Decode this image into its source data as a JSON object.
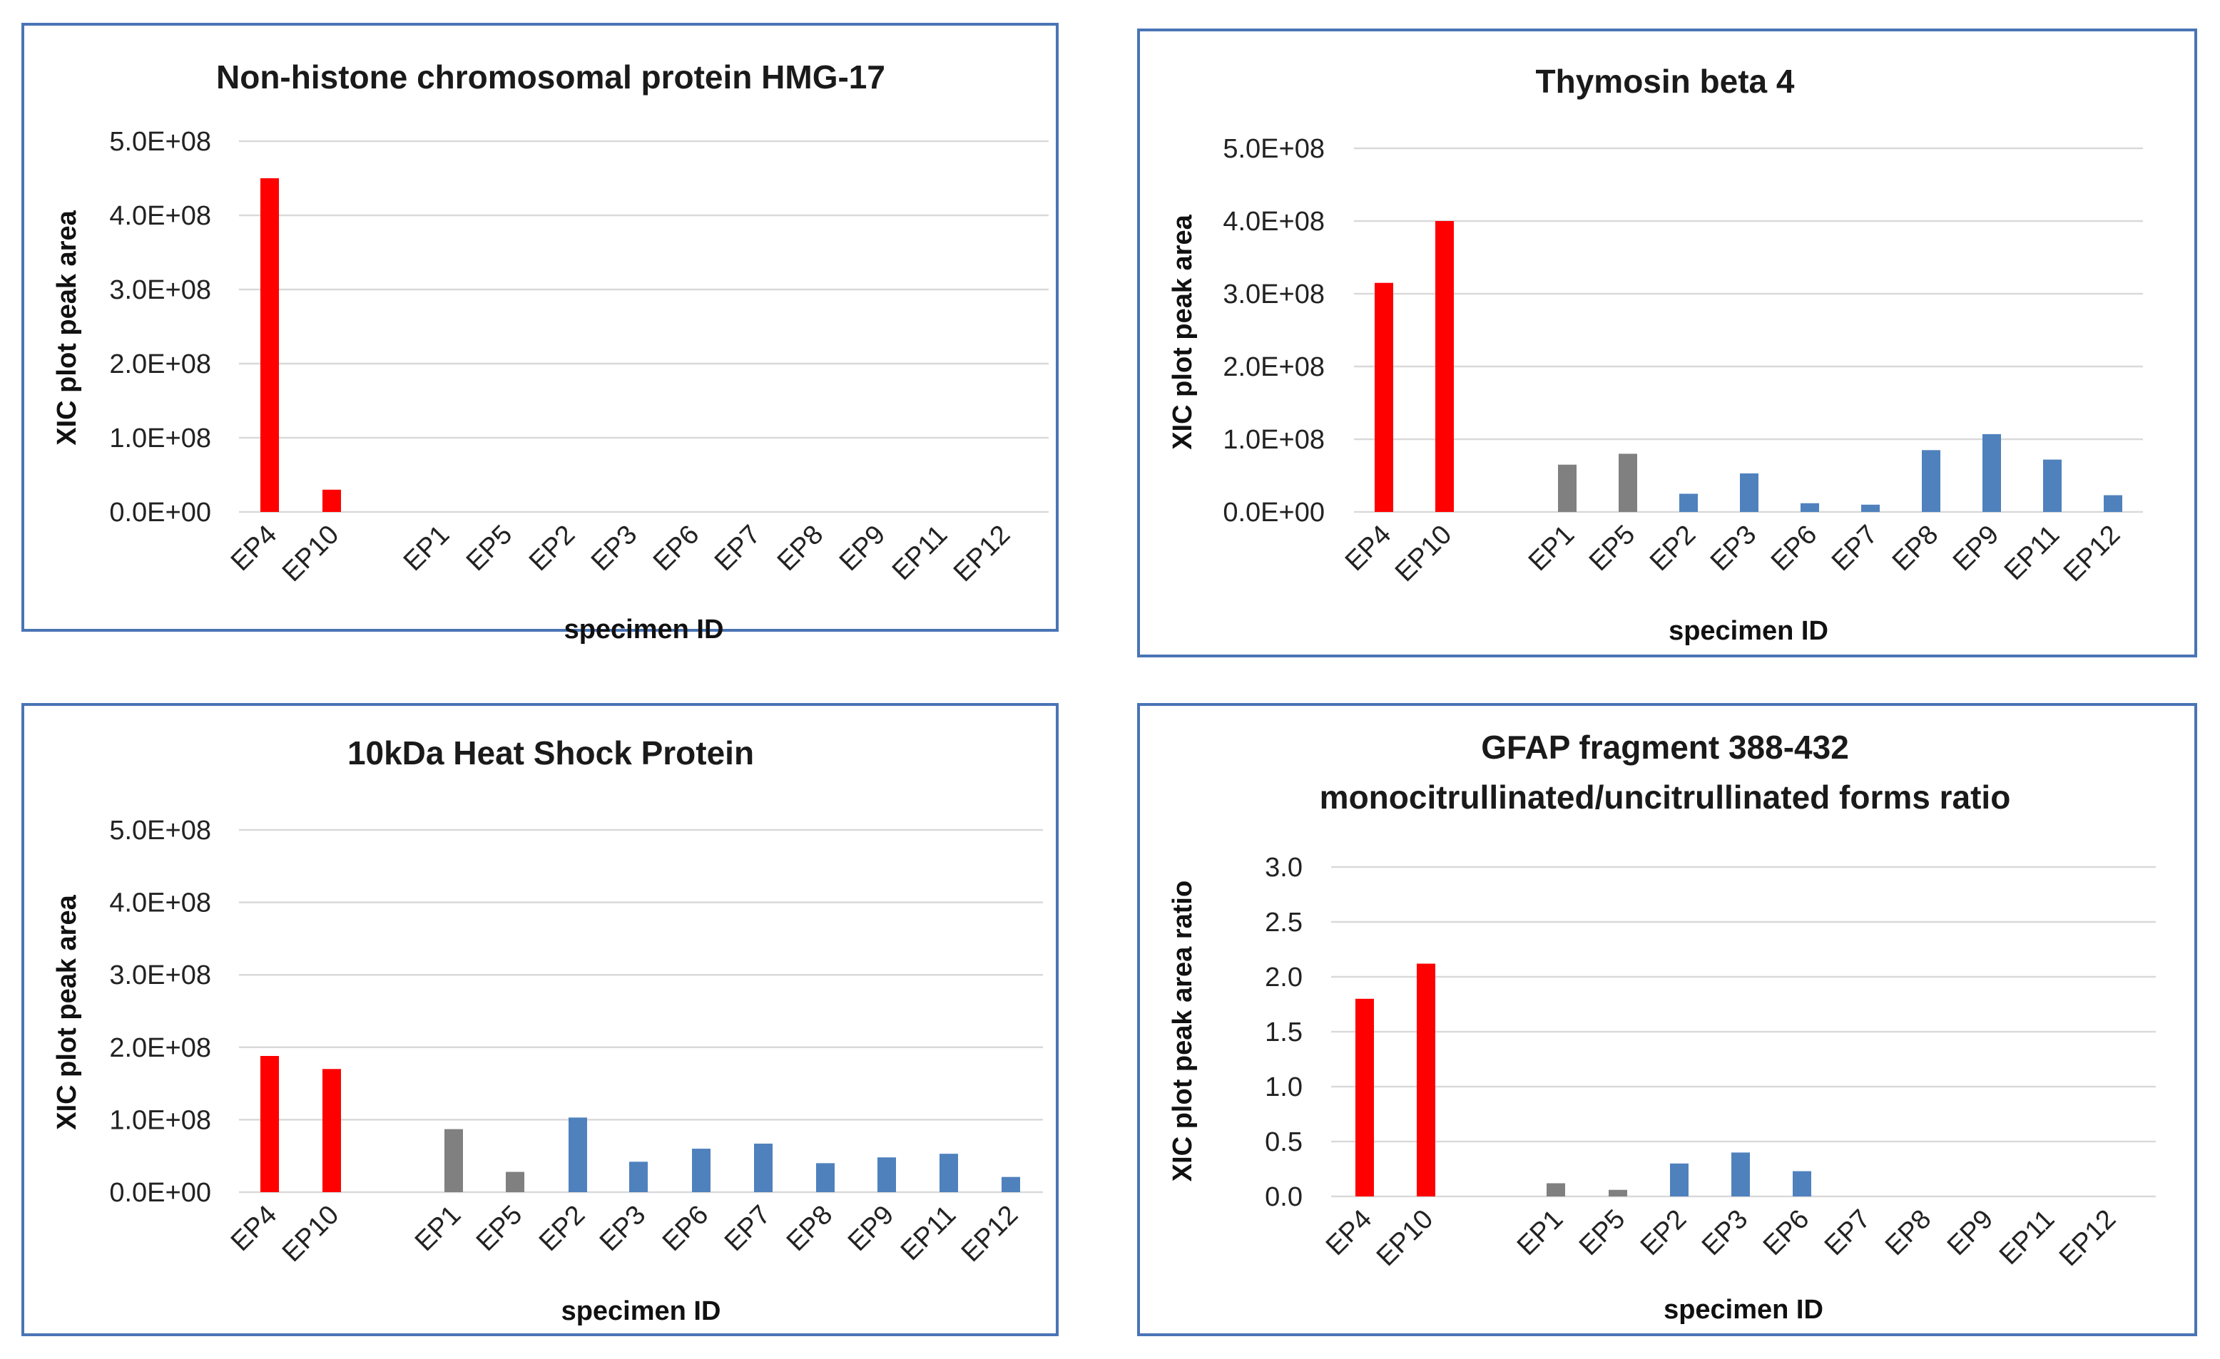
{
  "colors": {
    "group1": "#ff0000",
    "group2": "#808080",
    "group3": "#4f81bd"
  },
  "chart_data": [
    {
      "type": "bar",
      "title": [
        "Non-histone chromosomal protein HMG-17"
      ],
      "xlabel": "specimen ID",
      "ylabel": "XIC plot peak area",
      "ylim": [
        0,
        500000000
      ],
      "yticks": [
        0,
        100000000,
        200000000,
        300000000,
        400000000,
        500000000
      ],
      "ytick_labels": [
        "0.0E+00",
        "1.0E+08",
        "2.0E+08",
        "3.0E+08",
        "4.0E+08",
        "5.0E+08"
      ],
      "grid": true,
      "categories": [
        "EP4",
        "EP10",
        "",
        "EP1",
        "EP5",
        "EP2",
        "EP3",
        "EP6",
        "EP7",
        "EP8",
        "EP9",
        "EP11",
        "EP12"
      ],
      "groups": [
        1,
        1,
        0,
        2,
        2,
        3,
        3,
        3,
        3,
        3,
        3,
        3,
        3
      ],
      "values": [
        450000000,
        30000000,
        0,
        0,
        0,
        0,
        0,
        0,
        0,
        0,
        0,
        0,
        0
      ]
    },
    {
      "type": "bar",
      "title": [
        "Thymosin beta 4"
      ],
      "xlabel": "specimen ID",
      "ylabel": "XIC plot peak area",
      "ylim": [
        0,
        500000000
      ],
      "yticks": [
        0,
        100000000,
        200000000,
        300000000,
        400000000,
        500000000
      ],
      "ytick_labels": [
        "0.0E+00",
        "1.0E+08",
        "2.0E+08",
        "3.0E+08",
        "4.0E+08",
        "5.0E+08"
      ],
      "grid": true,
      "categories": [
        "EP4",
        "EP10",
        "",
        "EP1",
        "EP5",
        "EP2",
        "EP3",
        "EP6",
        "EP7",
        "EP8",
        "EP9",
        "EP11",
        "EP12"
      ],
      "groups": [
        1,
        1,
        0,
        2,
        2,
        3,
        3,
        3,
        3,
        3,
        3,
        3,
        3
      ],
      "values": [
        315000000,
        400000000,
        0,
        65000000,
        80000000,
        25000000,
        53000000,
        12000000,
        10000000,
        85000000,
        107000000,
        72000000,
        23000000
      ]
    },
    {
      "type": "bar",
      "title": [
        "10kDa Heat Shock Protein"
      ],
      "xlabel": "specimen ID",
      "ylabel": "XIC plot peak area",
      "ylim": [
        0,
        500000000
      ],
      "yticks": [
        0,
        100000000,
        200000000,
        300000000,
        400000000,
        500000000
      ],
      "ytick_labels": [
        "0.0E+00",
        "1.0E+08",
        "2.0E+08",
        "3.0E+08",
        "4.0E+08",
        "5.0E+08"
      ],
      "grid": true,
      "categories": [
        "EP4",
        "EP10",
        "",
        "EP1",
        "EP5",
        "EP2",
        "EP3",
        "EP6",
        "EP7",
        "EP8",
        "EP9",
        "EP11",
        "EP12"
      ],
      "groups": [
        1,
        1,
        0,
        2,
        2,
        3,
        3,
        3,
        3,
        3,
        3,
        3,
        3
      ],
      "values": [
        188000000,
        170000000,
        0,
        87000000,
        28000000,
        103000000,
        42000000,
        60000000,
        67000000,
        40000000,
        48000000,
        53000000,
        21000000
      ]
    },
    {
      "type": "bar",
      "title": [
        "GFAP fragment 388-432",
        "monocitrullinated/uncitrullinated  forms ratio"
      ],
      "xlabel": "specimen ID",
      "ylabel": "XIC plot peak area ratio",
      "ylim": [
        0,
        3
      ],
      "yticks": [
        0,
        0.5,
        1,
        1.5,
        2,
        2.5,
        3
      ],
      "ytick_labels": [
        "0.0",
        "0.5",
        "1.0",
        "1.5",
        "2.0",
        "2.5",
        "3.0"
      ],
      "grid": true,
      "categories": [
        "EP4",
        "EP10",
        "",
        "EP1",
        "EP5",
        "EP2",
        "EP3",
        "EP6",
        "EP7",
        "EP8",
        "EP9",
        "EP11",
        "EP12"
      ],
      "groups": [
        1,
        1,
        0,
        2,
        2,
        3,
        3,
        3,
        3,
        3,
        3,
        3,
        3
      ],
      "values": [
        1.8,
        2.12,
        0,
        0.12,
        0.06,
        0.3,
        0.4,
        0.23,
        0,
        0,
        0,
        0,
        0
      ]
    }
  ]
}
